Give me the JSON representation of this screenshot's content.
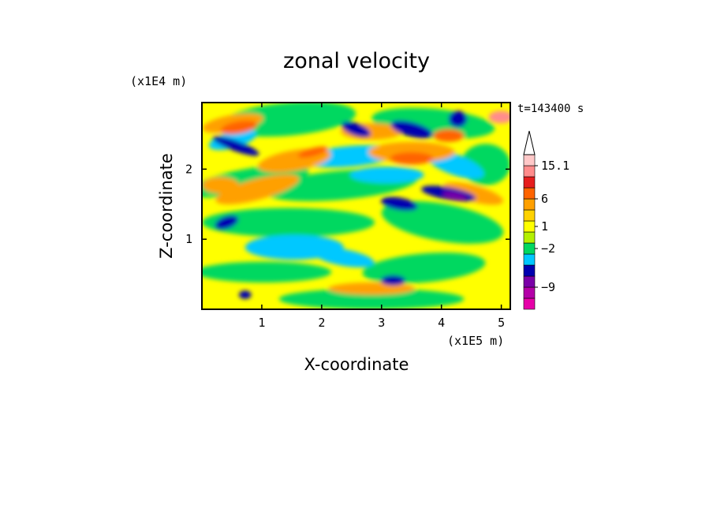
{
  "chart_data": {
    "type": "heatmap",
    "title": "zonal velocity",
    "xlabel": "X-coordinate",
    "ylabel": "Z-coordinate",
    "x_multiplier": "(x1E5 m)",
    "y_multiplier": "(x1E4 m)",
    "time_label": "t=143400 s",
    "xlim": [
      0,
      5.15
    ],
    "ylim": [
      0,
      2.95
    ],
    "x_ticks": [
      1,
      2,
      3,
      4,
      5
    ],
    "y_ticks": [
      1,
      2
    ],
    "grid": false,
    "colorbar": {
      "position": "right",
      "extend_max": true,
      "bins": [
        {
          "color": "#e600a8"
        },
        {
          "color": "#b400a8"
        },
        {
          "color": "#7a00a8"
        },
        {
          "color": "#0000b0"
        },
        {
          "color": "#00c8ff"
        },
        {
          "color": "#00d860"
        },
        {
          "color": "#b4f000"
        },
        {
          "color": "#ffff00"
        },
        {
          "color": "#ffd200"
        },
        {
          "color": "#ffa000"
        },
        {
          "color": "#ff6400"
        },
        {
          "color": "#e61e1e"
        },
        {
          "color": "#ff8c8c"
        },
        {
          "color": "#ffc8c8"
        }
      ],
      "tick_labels": [
        {
          "text": "15.1",
          "at_bin_edge": 13
        },
        {
          "text": "6",
          "at_bin_edge": 10
        },
        {
          "text": "1",
          "at_bin_edge": 7.5
        },
        {
          "text": "-2",
          "at_bin_edge": 5.5
        },
        {
          "text": "-9",
          "at_bin_edge": 2
        }
      ]
    },
    "field_background": "#ffff00"
  }
}
